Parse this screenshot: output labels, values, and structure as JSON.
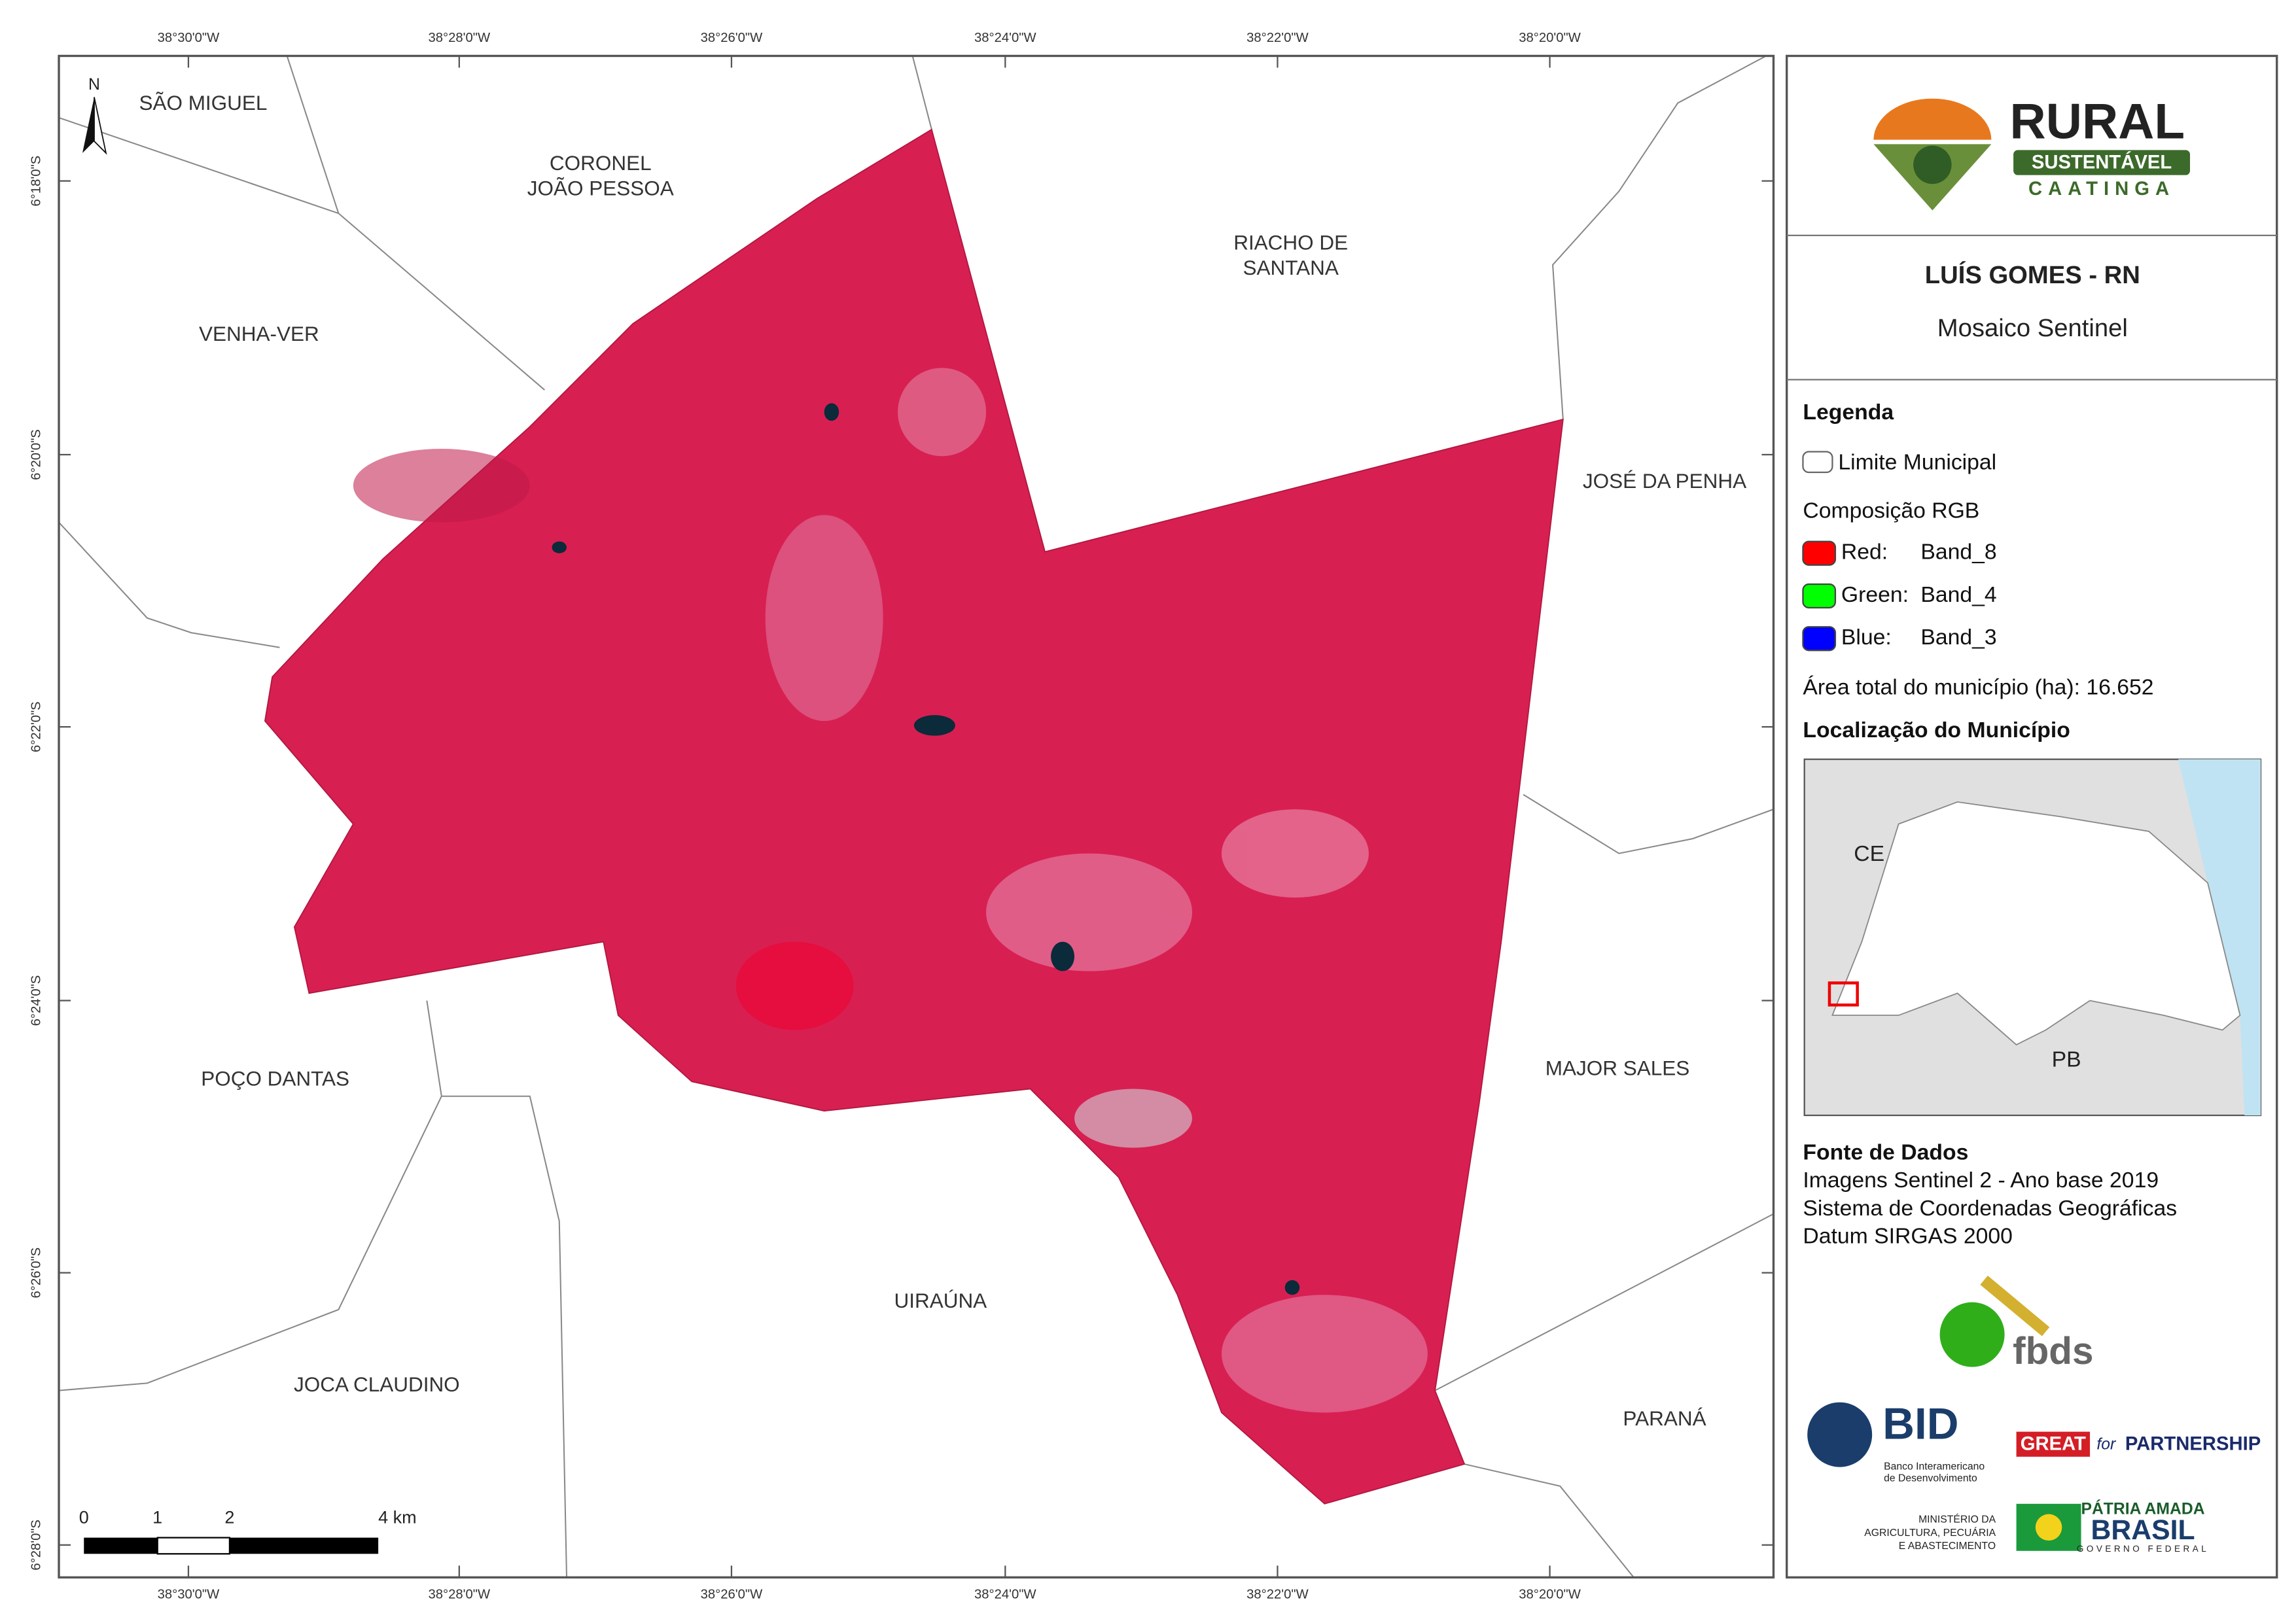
{
  "map": {
    "top_labels": [
      "38°30'0\"W",
      "38°28'0\"W",
      "38°26'0\"W",
      "38°24'0\"W",
      "38°22'0\"W",
      "38°20'0\"W"
    ],
    "bottom_labels": [
      "38°30'0\"W",
      "38°28'0\"W",
      "38°26'0\"W",
      "38°24'0\"W",
      "38°22'0\"W",
      "38°20'0\"W"
    ],
    "left_labels": [
      "6°18'0\"S",
      "6°20'0\"S",
      "6°22'0\"S",
      "6°24'0\"S",
      "6°26'0\"S",
      "6°28'0\"S"
    ],
    "places": [
      "SÃO MIGUEL",
      "CORONEL",
      "JOÃO PESSOA",
      "RIACHO DE",
      "SANTANA",
      "VENHA-VER",
      "JOSÉ DA PENHA",
      "POÇO DANTAS",
      "MAJOR SALES",
      "UIRAÚNA",
      "JOCA CLAUDINO",
      "PARANÁ"
    ],
    "north": "N",
    "scale": [
      "0",
      "1",
      "2",
      "4 km"
    ]
  },
  "panel": {
    "logo": [
      "RURAL",
      "SUSTENTÁVEL",
      "CAATINGA"
    ],
    "title": "LUÍS GOMES - RN",
    "subtitle": "Mosaico Sentinel",
    "legend_title": "Legenda",
    "limit": "Limite Municipal",
    "rgb_title": "Composição RGB",
    "bands": [
      {
        "label": "Red:",
        "band": "Band_8",
        "color": "#ff0000"
      },
      {
        "label": "Green:",
        "band": "Band_4",
        "color": "#00ff00"
      },
      {
        "label": "Blue:",
        "band": "Band_3",
        "color": "#0000ff"
      }
    ],
    "area": "Área total do município (ha): 16.652",
    "location_title": "Localização do Município",
    "inset": [
      "CE",
      "PB"
    ],
    "sources_title": "Fonte de Dados",
    "sources": [
      "Imagens Sentinel 2 - Ano base 2019",
      "Sistema de Coordenadas Geográficas",
      "Datum SIRGAS 2000"
    ],
    "logos": [
      "fbds",
      "BID",
      "Banco Interamericano",
      "de Desenvolvimento",
      "GREAT",
      "for",
      "PARTNERSHIP",
      "MINISTÉRIO DA",
      "AGRICULTURA, PECUÁRIA",
      "E ABASTECIMENTO",
      "PÁTRIA AMADA",
      "BRASIL",
      "GOVERNO FEDERAL"
    ]
  }
}
